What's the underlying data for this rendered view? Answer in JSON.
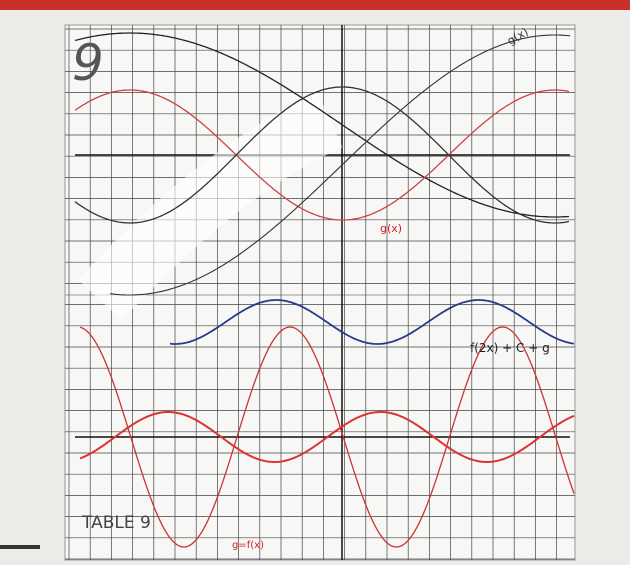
{
  "top_sheet": {
    "number": "9",
    "labels": [
      "g(x)",
      "g(x)"
    ]
  },
  "bottom_sheet": {
    "title": "TABLE 9",
    "labels": [
      "f(2x) + C + g",
      "g=f(x)"
    ]
  }
}
